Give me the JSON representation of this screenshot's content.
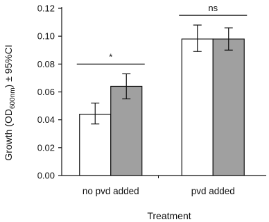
{
  "chart_data": {
    "type": "bar",
    "ylabel_prefix": "Growth (OD",
    "ylabel_sub": "600nm",
    "ylabel_suffix": ") ± 95%CI",
    "xlabel": "Treatment",
    "ylim": [
      0,
      0.12
    ],
    "yticks": [
      "0.00",
      "0.02",
      "0.04",
      "0.06",
      "0.08",
      "0.10",
      "0.12"
    ],
    "categories": [
      "no pvd added",
      "pvd added"
    ],
    "grid": false,
    "series": [
      {
        "color": "#ffffff",
        "values": [
          0.044,
          0.098
        ],
        "ci_low": [
          0.037,
          0.089
        ],
        "ci_high": [
          0.052,
          0.108
        ]
      },
      {
        "color": "#a0a0a0",
        "values": [
          0.064,
          0.098
        ],
        "ci_low": [
          0.055,
          0.09
        ],
        "ci_high": [
          0.073,
          0.106
        ]
      }
    ],
    "annotations": [
      {
        "text": "*",
        "category": 0
      },
      {
        "text": "ns",
        "category": 1
      }
    ]
  }
}
